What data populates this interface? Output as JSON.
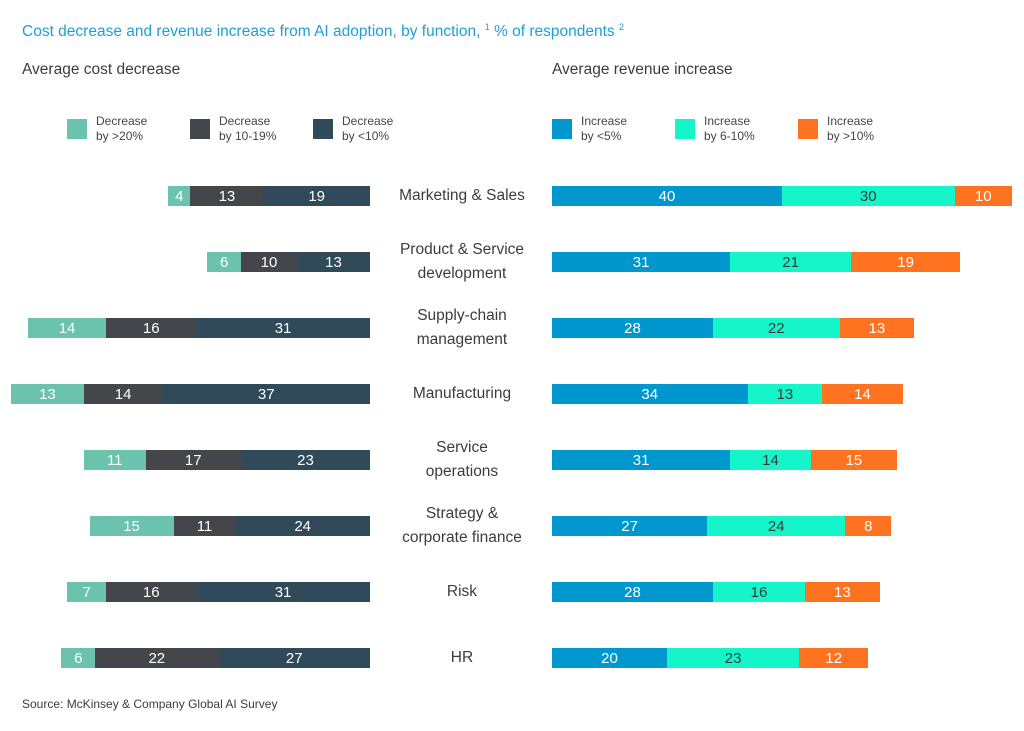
{
  "colors": {
    "title": "#1f9fd6",
    "cost": [
      "#6cc3ad",
      "#45464b",
      "#304a5a"
    ],
    "revenue": [
      "#0097ce",
      "#16f5c9",
      "#ff7320"
    ],
    "label_light": "#ffffff",
    "label_dark": "#3a3a3a"
  },
  "chart_data": {
    "type": "bar",
    "orientation": "horizontal",
    "stacked": true,
    "title": "Cost decrease and revenue increase from AI adoption, by function,",
    "title_footnote_1": "1",
    "title_unit": "% of respondents",
    "title_footnote_2": "2",
    "categories": [
      "Marketing & Sales",
      "Product & Service\ndevelopment",
      "Supply-chain\nmanagement",
      "Manufacturing",
      "Service\noperations",
      "Strategy &\ncorporate finance",
      "Risk",
      "HR"
    ],
    "panels": [
      {
        "name": "cost",
        "subtitle": "Average cost decrease",
        "direction": "leftward",
        "series": [
          {
            "name": "Decrease\nby >20%",
            "values": [
              4,
              6,
              14,
              13,
              11,
              15,
              7,
              6
            ]
          },
          {
            "name": "Decrease\nby 10-19%",
            "values": [
              13,
              10,
              16,
              14,
              17,
              11,
              16,
              22
            ]
          },
          {
            "name": "Decrease\nby <10%",
            "values": [
              19,
              13,
              31,
              37,
              23,
              24,
              31,
              27
            ]
          }
        ]
      },
      {
        "name": "revenue",
        "subtitle": "Average revenue increase",
        "direction": "rightward",
        "series": [
          {
            "name": "Increase\nby <5%",
            "values": [
              40,
              31,
              28,
              34,
              31,
              27,
              28,
              20
            ]
          },
          {
            "name": "Increase\nby 6-10%",
            "values": [
              30,
              21,
              22,
              13,
              14,
              24,
              16,
              23
            ]
          },
          {
            "name": "Increase\nby >10%",
            "values": [
              10,
              19,
              13,
              14,
              15,
              8,
              13,
              12
            ]
          }
        ]
      }
    ],
    "legend_position": "top",
    "grid": false
  },
  "source": "Source: McKinsey & Company Global AI Survey"
}
